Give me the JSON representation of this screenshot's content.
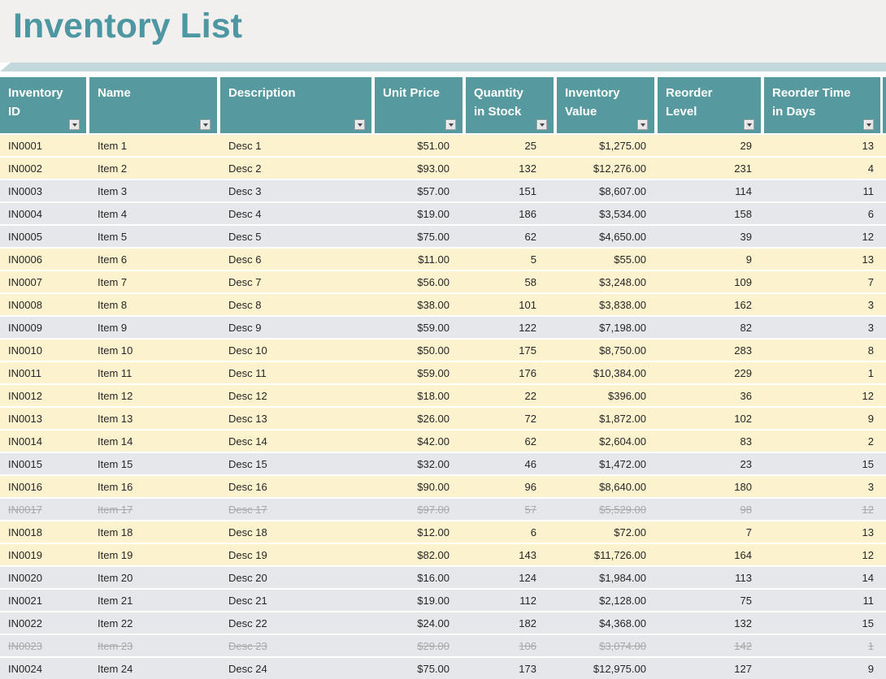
{
  "title": "Inventory List",
  "columns": [
    {
      "key": "id",
      "label": "Inventory\nID"
    },
    {
      "key": "name",
      "label": "Name"
    },
    {
      "key": "desc",
      "label": "Description"
    },
    {
      "key": "unit_price",
      "label": "Unit Price"
    },
    {
      "key": "qty",
      "label": "Quantity\nin Stock"
    },
    {
      "key": "value",
      "label": "Inventory\nValue"
    },
    {
      "key": "reorder_level",
      "label": "Reorder\nLevel"
    },
    {
      "key": "reorder_time",
      "label": "Reorder Time\nin Days"
    }
  ],
  "rows": [
    {
      "id": "IN0001",
      "name": "Item 1",
      "desc": "Desc 1",
      "unit_price": "$51.00",
      "qty": 25,
      "value": "$1,275.00",
      "reorder_level": 29,
      "reorder_time": 13,
      "highlight": true,
      "discontinued": false
    },
    {
      "id": "IN0002",
      "name": "Item 2",
      "desc": "Desc 2",
      "unit_price": "$93.00",
      "qty": 132,
      "value": "$12,276.00",
      "reorder_level": 231,
      "reorder_time": 4,
      "highlight": true,
      "discontinued": false
    },
    {
      "id": "IN0003",
      "name": "Item 3",
      "desc": "Desc 3",
      "unit_price": "$57.00",
      "qty": 151,
      "value": "$8,607.00",
      "reorder_level": 114,
      "reorder_time": 11,
      "highlight": false,
      "discontinued": false
    },
    {
      "id": "IN0004",
      "name": "Item 4",
      "desc": "Desc 4",
      "unit_price": "$19.00",
      "qty": 186,
      "value": "$3,534.00",
      "reorder_level": 158,
      "reorder_time": 6,
      "highlight": false,
      "discontinued": false
    },
    {
      "id": "IN0005",
      "name": "Item 5",
      "desc": "Desc 5",
      "unit_price": "$75.00",
      "qty": 62,
      "value": "$4,650.00",
      "reorder_level": 39,
      "reorder_time": 12,
      "highlight": false,
      "discontinued": false
    },
    {
      "id": "IN0006",
      "name": "Item 6",
      "desc": "Desc 6",
      "unit_price": "$11.00",
      "qty": 5,
      "value": "$55.00",
      "reorder_level": 9,
      "reorder_time": 13,
      "highlight": true,
      "discontinued": false
    },
    {
      "id": "IN0007",
      "name": "Item 7",
      "desc": "Desc 7",
      "unit_price": "$56.00",
      "qty": 58,
      "value": "$3,248.00",
      "reorder_level": 109,
      "reorder_time": 7,
      "highlight": true,
      "discontinued": false
    },
    {
      "id": "IN0008",
      "name": "Item 8",
      "desc": "Desc 8",
      "unit_price": "$38.00",
      "qty": 101,
      "value": "$3,838.00",
      "reorder_level": 162,
      "reorder_time": 3,
      "highlight": true,
      "discontinued": false
    },
    {
      "id": "IN0009",
      "name": "Item 9",
      "desc": "Desc 9",
      "unit_price": "$59.00",
      "qty": 122,
      "value": "$7,198.00",
      "reorder_level": 82,
      "reorder_time": 3,
      "highlight": false,
      "discontinued": false
    },
    {
      "id": "IN0010",
      "name": "Item 10",
      "desc": "Desc 10",
      "unit_price": "$50.00",
      "qty": 175,
      "value": "$8,750.00",
      "reorder_level": 283,
      "reorder_time": 8,
      "highlight": true,
      "discontinued": false
    },
    {
      "id": "IN0011",
      "name": "Item 11",
      "desc": "Desc 11",
      "unit_price": "$59.00",
      "qty": 176,
      "value": "$10,384.00",
      "reorder_level": 229,
      "reorder_time": 1,
      "highlight": true,
      "discontinued": false
    },
    {
      "id": "IN0012",
      "name": "Item 12",
      "desc": "Desc 12",
      "unit_price": "$18.00",
      "qty": 22,
      "value": "$396.00",
      "reorder_level": 36,
      "reorder_time": 12,
      "highlight": true,
      "discontinued": false
    },
    {
      "id": "IN0013",
      "name": "Item 13",
      "desc": "Desc 13",
      "unit_price": "$26.00",
      "qty": 72,
      "value": "$1,872.00",
      "reorder_level": 102,
      "reorder_time": 9,
      "highlight": true,
      "discontinued": false
    },
    {
      "id": "IN0014",
      "name": "Item 14",
      "desc": "Desc 14",
      "unit_price": "$42.00",
      "qty": 62,
      "value": "$2,604.00",
      "reorder_level": 83,
      "reorder_time": 2,
      "highlight": true,
      "discontinued": false
    },
    {
      "id": "IN0015",
      "name": "Item 15",
      "desc": "Desc 15",
      "unit_price": "$32.00",
      "qty": 46,
      "value": "$1,472.00",
      "reorder_level": 23,
      "reorder_time": 15,
      "highlight": false,
      "discontinued": false
    },
    {
      "id": "IN0016",
      "name": "Item 16",
      "desc": "Desc 16",
      "unit_price": "$90.00",
      "qty": 96,
      "value": "$8,640.00",
      "reorder_level": 180,
      "reorder_time": 3,
      "highlight": true,
      "discontinued": false
    },
    {
      "id": "IN0017",
      "name": "Item 17",
      "desc": "Desc 17",
      "unit_price": "$97.00",
      "qty": 57,
      "value": "$5,529.00",
      "reorder_level": 98,
      "reorder_time": 12,
      "highlight": false,
      "discontinued": true
    },
    {
      "id": "IN0018",
      "name": "Item 18",
      "desc": "Desc 18",
      "unit_price": "$12.00",
      "qty": 6,
      "value": "$72.00",
      "reorder_level": 7,
      "reorder_time": 13,
      "highlight": true,
      "discontinued": false
    },
    {
      "id": "IN0019",
      "name": "Item 19",
      "desc": "Desc 19",
      "unit_price": "$82.00",
      "qty": 143,
      "value": "$11,726.00",
      "reorder_level": 164,
      "reorder_time": 12,
      "highlight": true,
      "discontinued": false
    },
    {
      "id": "IN0020",
      "name": "Item 20",
      "desc": "Desc 20",
      "unit_price": "$16.00",
      "qty": 124,
      "value": "$1,984.00",
      "reorder_level": 113,
      "reorder_time": 14,
      "highlight": false,
      "discontinued": false
    },
    {
      "id": "IN0021",
      "name": "Item 21",
      "desc": "Desc 21",
      "unit_price": "$19.00",
      "qty": 112,
      "value": "$2,128.00",
      "reorder_level": 75,
      "reorder_time": 11,
      "highlight": false,
      "discontinued": false
    },
    {
      "id": "IN0022",
      "name": "Item 22",
      "desc": "Desc 22",
      "unit_price": "$24.00",
      "qty": 182,
      "value": "$4,368.00",
      "reorder_level": 132,
      "reorder_time": 15,
      "highlight": false,
      "discontinued": false
    },
    {
      "id": "IN0023",
      "name": "Item 23",
      "desc": "Desc 23",
      "unit_price": "$29.00",
      "qty": 106,
      "value": "$3,074.00",
      "reorder_level": 142,
      "reorder_time": 1,
      "highlight": false,
      "discontinued": true
    },
    {
      "id": "IN0024",
      "name": "Item 24",
      "desc": "Desc 24",
      "unit_price": "$75.00",
      "qty": 173,
      "value": "$12,975.00",
      "reorder_level": 127,
      "reorder_time": 9,
      "highlight": false,
      "discontinued": false
    }
  ],
  "colors": {
    "title_text": "#4d97a3",
    "title_bar_bg": "#f1f0ee",
    "accent_band": "#c3d8da",
    "header_bg": "#569aa0",
    "header_text": "#ffffff",
    "row_highlight": "#fcf2cd",
    "row_normal": "#e5e7ea",
    "struck_text": "#a8a8a8"
  }
}
